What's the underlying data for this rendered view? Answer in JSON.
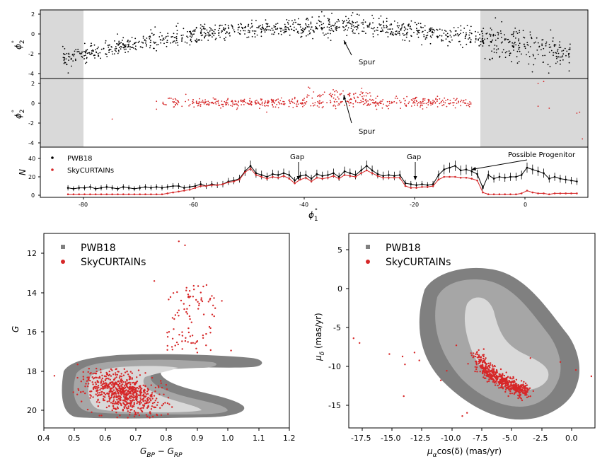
{
  "chart_data": [
    {
      "type": "scatter",
      "panel": "top",
      "xlim": [
        -88,
        11
      ],
      "ylim": [
        -4.5,
        2.5
      ],
      "ylabel": "ϕ₂°",
      "yticks": [
        "2",
        "0",
        "-2",
        "-4"
      ],
      "shaded_regions": [
        [
          -88,
          -80.5
        ],
        [
          -8,
          11
        ]
      ],
      "series": [
        {
          "name": "PWB18 stars",
          "color": "#000000",
          "trend": "arching track: -2.5 at ϕ₁=-84, peak ~0.7 at ϕ₁=-34, -2 at ϕ₁=8"
        }
      ],
      "annotations": [
        {
          "text": "Spur",
          "arrow_to": [
            -33,
            1.0
          ],
          "text_at": [
            -30,
            -2.1
          ]
        }
      ]
    },
    {
      "type": "scatter",
      "panel": "middle",
      "xlim": [
        -88,
        11
      ],
      "ylim": [
        -4.5,
        2.5
      ],
      "ylabel": "ϕ₂°",
      "yticks": [
        "2",
        "0",
        "-2",
        "-4"
      ],
      "shaded_regions": [
        [
          -88,
          -80.5
        ],
        [
          -8,
          11
        ]
      ],
      "series": [
        {
          "name": "SkyCURTAINs stars",
          "color": "#d62728",
          "trend": "band near ϕ₂≈0 from ϕ₁=-66 to -10"
        }
      ],
      "annotations": [
        {
          "text": "Spur",
          "arrow_to": [
            -33,
            0.9
          ],
          "text_at": [
            -30,
            -2.1
          ]
        }
      ]
    },
    {
      "type": "line",
      "panel": "bottom",
      "xlim": [
        -88,
        11
      ],
      "ylim": [
        -1,
        46
      ],
      "xlabel": "ϕ₁°",
      "ylabel": "N",
      "xticks": [
        "-80",
        "-60",
        "-40",
        "-20",
        "0"
      ],
      "yticks": [
        "0",
        "20",
        "40"
      ],
      "legend_position": "upper-left",
      "x": [
        -83,
        -82,
        -81,
        -80,
        -79,
        -78,
        -77,
        -76,
        -75,
        -74,
        -73,
        -72,
        -71,
        -70,
        -69,
        -68,
        -67,
        -66,
        -65,
        -64,
        -63,
        -62,
        -61,
        -60,
        -59,
        -58,
        -57,
        -56,
        -55,
        -54,
        -53,
        -52,
        -51,
        -50,
        -49,
        -48,
        -47,
        -46,
        -45,
        -44,
        -43,
        -42,
        -41,
        -40,
        -39,
        -38,
        -37,
        -36,
        -35,
        -34,
        -33,
        -32,
        -31,
        -30,
        -29,
        -28,
        -27,
        -26,
        -25,
        -24,
        -23,
        -22,
        -21,
        -20,
        -19,
        -18,
        -17,
        -16,
        -15,
        -14,
        -13,
        -12,
        -11,
        -10,
        -9,
        -8,
        -7,
        -6,
        -5,
        -4,
        -3,
        -2,
        -1,
        0,
        1,
        2,
        3,
        4,
        5,
        6,
        7,
        8,
        9
      ],
      "series": [
        {
          "name": "PWB18",
          "color": "#000000",
          "values": [
            8,
            7,
            8,
            8,
            9,
            7,
            8,
            9,
            8,
            7,
            9,
            8,
            7,
            8,
            9,
            8,
            9,
            8,
            9,
            10,
            10,
            8,
            9,
            10,
            12,
            10,
            12,
            11,
            12,
            15,
            16,
            18,
            26,
            32,
            24,
            22,
            20,
            23,
            22,
            24,
            22,
            16,
            21,
            22,
            18,
            23,
            21,
            22,
            24,
            20,
            26,
            24,
            22,
            27,
            32,
            27,
            23,
            21,
            22,
            21,
            22,
            13,
            12,
            11,
            12,
            11,
            12,
            22,
            28,
            30,
            32,
            27,
            28,
            26,
            23,
            8,
            22,
            18,
            20,
            19,
            20,
            20,
            22,
            30,
            28,
            26,
            24,
            18,
            20,
            18,
            17,
            16,
            15
          ]
        },
        {
          "name": "SkyCURTAINs",
          "color": "#d62728",
          "values": [
            1,
            1,
            1,
            1,
            1,
            1,
            1,
            1,
            1,
            1,
            1,
            1,
            1,
            1,
            1,
            1,
            1,
            1,
            2,
            3,
            4,
            5,
            6,
            8,
            10,
            10,
            11,
            11,
            12,
            14,
            15,
            17,
            25,
            29,
            22,
            20,
            18,
            20,
            19,
            21,
            18,
            13,
            17,
            19,
            15,
            19,
            18,
            19,
            21,
            18,
            22,
            21,
            20,
            24,
            27,
            24,
            21,
            19,
            19,
            19,
            19,
            10,
            8,
            8,
            9,
            9,
            10,
            17,
            20,
            20,
            20,
            19,
            19,
            18,
            16,
            3,
            1,
            1,
            1,
            1,
            1,
            1,
            2,
            5,
            3,
            2,
            2,
            1,
            2,
            2,
            2,
            2,
            2
          ]
        }
      ],
      "annotations": [
        {
          "text": "Gap",
          "arrow_to": [
            -41.5,
            21
          ],
          "text_at": [
            -41.5,
            40
          ]
        },
        {
          "text": "Gap",
          "arrow_to": [
            -20.5,
            21
          ],
          "text_at": [
            -20.5,
            40
          ]
        },
        {
          "text": "Possible Progenitor",
          "arrow_to": [
            -10,
            29
          ],
          "text_at": [
            -3,
            41
          ]
        }
      ]
    },
    {
      "type": "scatter",
      "panel": "bottom-left",
      "title": "",
      "xlabel": "G_BP − G_RP",
      "ylabel": "G",
      "xlim": [
        0.4,
        1.2
      ],
      "ylim": [
        21,
        11.2
      ],
      "xticks": [
        "0.4",
        "0.5",
        "0.6",
        "0.7",
        "0.8",
        "0.9",
        "1.0",
        "1.1",
        "1.2"
      ],
      "yticks": [
        "12",
        "14",
        "16",
        "18",
        "20"
      ],
      "legend_position": "upper-left",
      "series": [
        {
          "name": "PWB18",
          "style": "filled grey contours (3 levels)",
          "colors": [
            "#808080",
            "#a6a6a6",
            "#d9d9d9"
          ]
        },
        {
          "name": "SkyCURTAINs",
          "color": "#d62728",
          "cluster": "dense blob G 18–20.5, color 0.55–0.80; sparse branch G 12–17, color 0.8–0.97"
        }
      ]
    },
    {
      "type": "scatter",
      "panel": "bottom-right",
      "xlabel": "μ_α cos(δ) (mas/yr)",
      "ylabel": "μ_δ (mas/yr)",
      "xlim": [
        -18.7,
        1.9
      ],
      "ylim": [
        -17.5,
        7
      ],
      "xticks": [
        "-17.5",
        "-15.0",
        "-12.5",
        "-10.0",
        "-7.5",
        "-5.0",
        "-2.5",
        "0.0"
      ],
      "yticks": [
        "5",
        "0",
        "-5",
        "-10",
        "-15"
      ],
      "legend_position": "upper-left",
      "series": [
        {
          "name": "PWB18",
          "style": "filled grey contours (3 levels)",
          "colors": [
            "#808080",
            "#a6a6a6",
            "#d9d9d9"
          ]
        },
        {
          "name": "SkyCURTAINs",
          "color": "#d62728",
          "cluster": "curved stream from (-8,-8) to (-4,-13)"
        }
      ]
    }
  ],
  "labels": {
    "top_ylabel": "ϕ",
    "top_ylabel_sub": "2",
    "top_ylabel_sup": "°",
    "mid_ylabel": "ϕ",
    "mid_ylabel_sub": "2",
    "mid_ylabel_sup": "°",
    "bot_ylabel": "N",
    "bot_xlabel": "ϕ",
    "bot_xlabel_sub": "1",
    "bot_xlabel_sup": "°",
    "spur1": "Spur",
    "spur2": "Spur",
    "gap1": "Gap",
    "gap2": "Gap",
    "progenitor": "Possible Progenitor",
    "leg_top_1": "PWB18",
    "leg_top_2": "SkyCURTAINs",
    "cmd_ylabel": "G",
    "cmd_xlabel_main": "G",
    "cmd_xlabel_sub1": "BP",
    "cmd_xlabel_mid": " − G",
    "cmd_xlabel_sub2": "RP",
    "cmd_leg_1": "PWB18",
    "cmd_leg_2": "SkyCURTAINs",
    "pm_ylabel_main": "μ",
    "pm_ylabel_sub": "δ",
    "pm_ylabel_unit": " (mas/yr)",
    "pm_xlabel_main": "μ",
    "pm_xlabel_sub": "α",
    "pm_xlabel_rest": "cos(δ) (mas/yr)",
    "pm_leg_1": "PWB18",
    "pm_leg_2": "SkyCURTAINs"
  }
}
